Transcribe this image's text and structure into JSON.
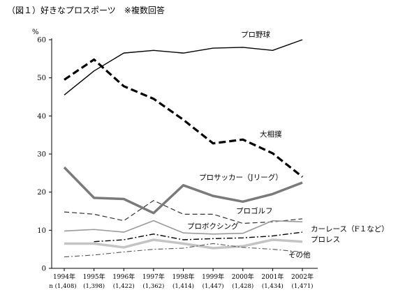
{
  "figure": {
    "title": "（図１）好きなプロスポーツ　※複数回答"
  },
  "chart_data": {
    "type": "line",
    "title": "（図１）好きなプロスポーツ　※複数回答",
    "ylabel": "%",
    "xlabel": "",
    "ylim": [
      0,
      60
    ],
    "yticks": [
      0,
      10,
      20,
      30,
      40,
      50,
      60
    ],
    "grid": false,
    "legend": "direct labels at line ends",
    "x": [
      "1994年",
      "1995年",
      "1996年",
      "1997年",
      "1998年",
      "1999年",
      "2000年",
      "2001年",
      "2002年"
    ],
    "n": [
      "n (1,408)",
      "(1,398)",
      "(1,422)",
      "(1,362)",
      "(1,414)",
      "(1,447)",
      "(1,428)",
      "(1,434)",
      "(1,471)"
    ],
    "series": [
      {
        "name": "プロ野球",
        "style": "solid-black",
        "values": [
          45.5,
          51.8,
          56.5,
          57.2,
          56.5,
          57.8,
          58.0,
          57.2,
          60.0
        ]
      },
      {
        "name": "大相撲",
        "style": "bold-dashed-black",
        "values": [
          49.5,
          54.8,
          47.8,
          44.5,
          39.0,
          32.8,
          33.8,
          30.2,
          24.0
        ]
      },
      {
        "name": "プロサッカー（Jリーグ）",
        "style": "thick-gray",
        "values": [
          26.5,
          18.5,
          18.2,
          14.5,
          21.8,
          19.0,
          17.5,
          19.5,
          22.5
        ]
      },
      {
        "name": "プロゴルフ",
        "style": "dashed-thin",
        "values": [
          14.8,
          14.2,
          12.5,
          17.8,
          14.2,
          14.2,
          11.8,
          12.2,
          13.0
        ]
      },
      {
        "name": "プロボクシング",
        "style": "thin-gray",
        "values": [
          9.8,
          10.2,
          9.5,
          12.5,
          9.3,
          9.0,
          9.2,
          12.5,
          12.2
        ]
      },
      {
        "name": "カーレース（F１など）",
        "style": "dash-dot-black",
        "values": [
          null,
          7.0,
          7.5,
          9.0,
          7.5,
          7.8,
          8.0,
          8.5,
          9.5
        ]
      },
      {
        "name": "プロレス",
        "style": "thick-lightgray",
        "values": [
          6.5,
          6.5,
          5.5,
          7.5,
          6.5,
          5.3,
          5.8,
          7.5,
          7.0
        ]
      },
      {
        "name": "その他",
        "style": "dash-dot-gray",
        "values": [
          3.0,
          3.5,
          4.3,
          5.0,
          5.3,
          6.5,
          5.5,
          5.0,
          4.3
        ]
      }
    ]
  },
  "colors": {
    "axis": "#000000",
    "black": "#000000",
    "gray_thick": "#808080",
    "gray_thin": "#999999",
    "light_gray": "#c8c8c8",
    "dashgray": "#555555"
  }
}
